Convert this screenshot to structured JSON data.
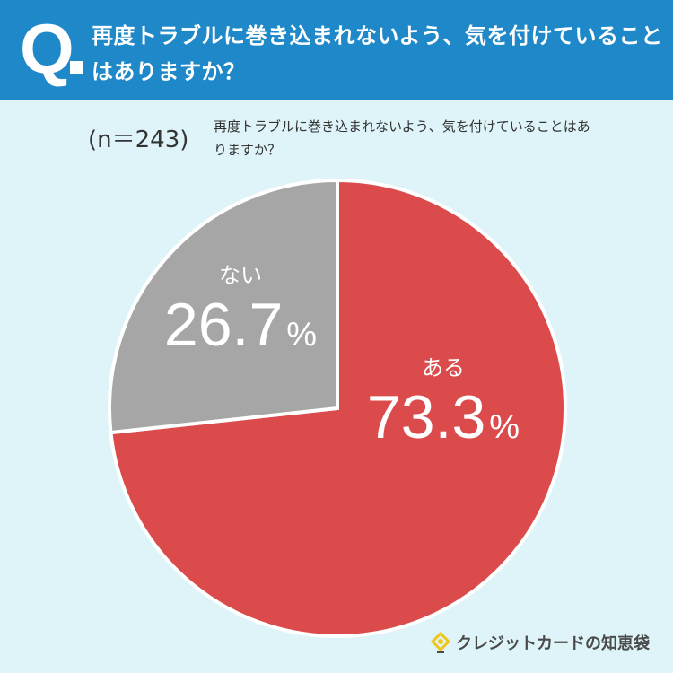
{
  "header": {
    "q_letter": "Q",
    "question": "再度トラブルに巻き込まれないよう、気を付けていることはありますか？"
  },
  "sample": "(n＝243)",
  "sub_question": "再度トラブルに巻き込まれないよう、気を付けていることはありますか？",
  "chart_data": {
    "type": "pie",
    "title": "再度トラブルに巻き込まれないよう、気を付けていることはありますか？",
    "n": 243,
    "slices": [
      {
        "label": "ある",
        "value": 73.3,
        "display": "73.3",
        "color": "#dc4b4b"
      },
      {
        "label": "ない",
        "value": 26.7,
        "display": "26.7",
        "color": "#a6a6a6"
      }
    ],
    "unit": "%",
    "start_angle_deg": 0,
    "direction": "clockwise"
  },
  "logo": {
    "text": "クレジットカードの知恵袋",
    "icon": "lightbulb-icon",
    "accent": "#f2c618"
  },
  "colors": {
    "header": "#1e88c9",
    "background": "#def4f8"
  }
}
